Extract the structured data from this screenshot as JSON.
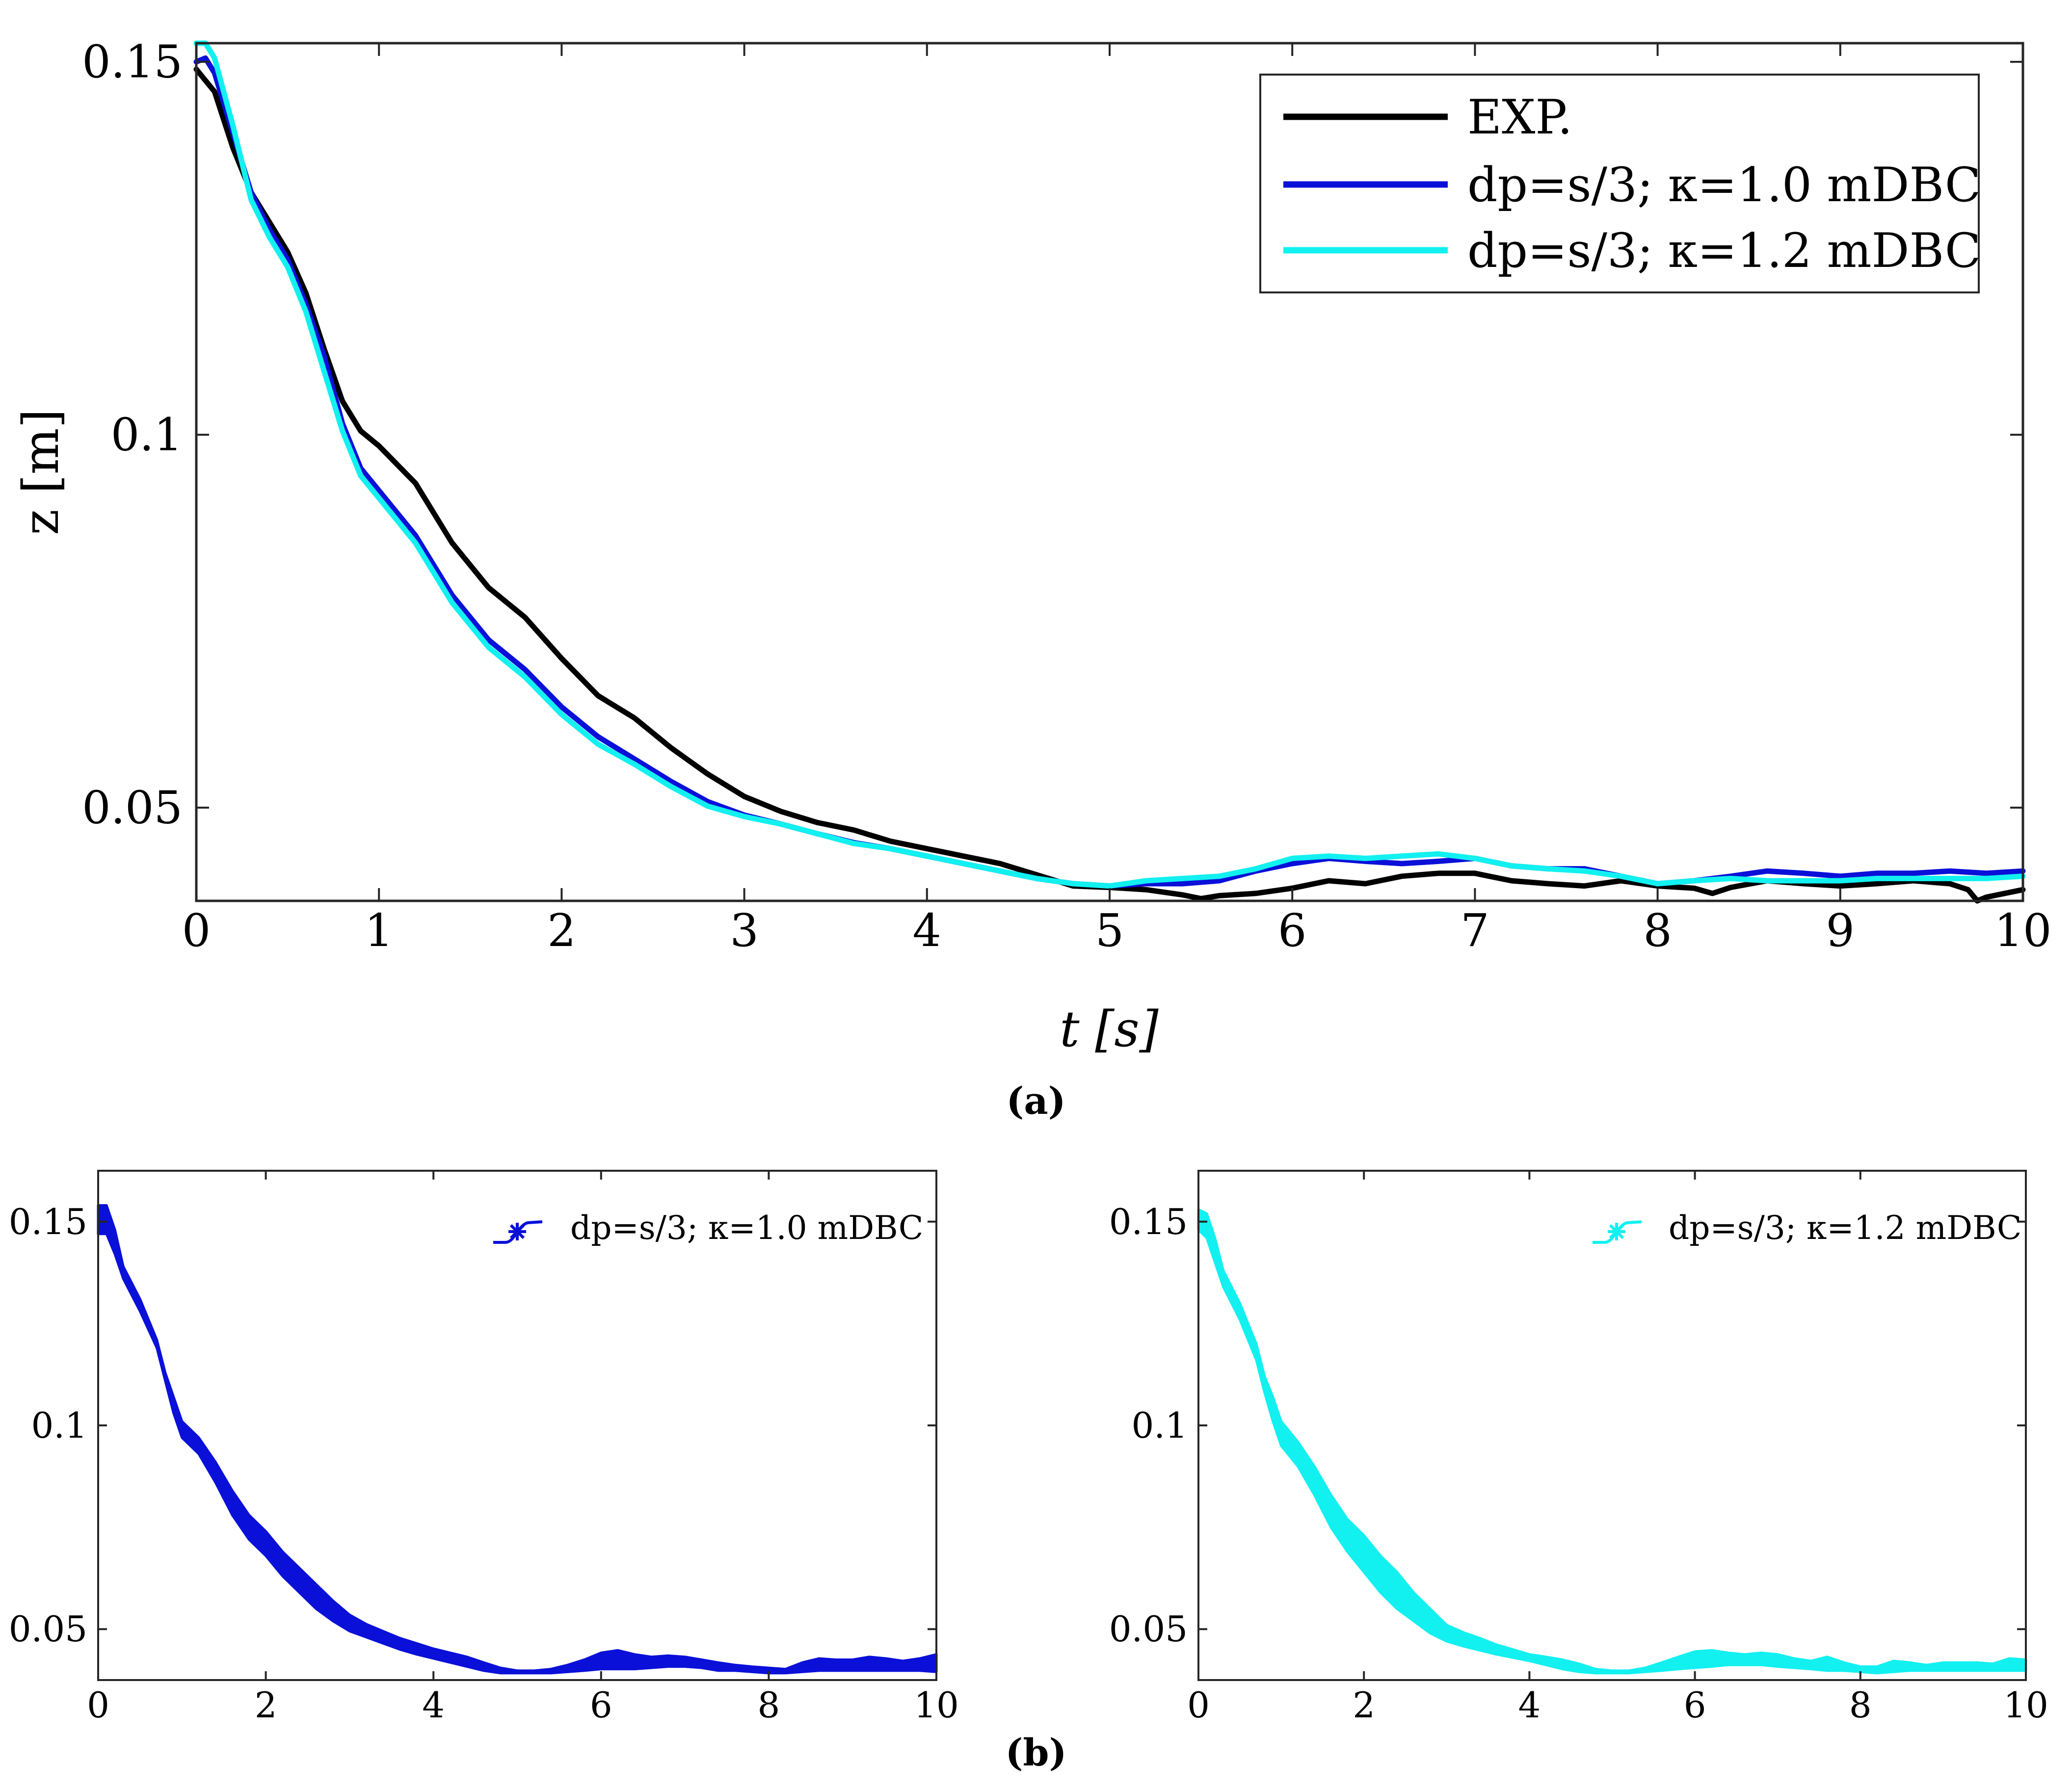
{
  "chart_data": [
    {
      "type": "line",
      "panel": "a",
      "caption": "(a)",
      "xlabel": "t [s]",
      "ylabel": "z [m]",
      "xlim": [
        0,
        10
      ],
      "ylim": [
        0.0375,
        0.1525
      ],
      "xticks": [
        0,
        1,
        2,
        3,
        4,
        5,
        6,
        7,
        8,
        9,
        10
      ],
      "xtick_labels": [
        "0",
        "1",
        "2",
        "3",
        "4",
        "5",
        "6",
        "7",
        "8",
        "9",
        "10"
      ],
      "yticks": [
        0.05,
        0.1,
        0.15
      ],
      "ytick_labels": [
        "0.05",
        "0.1",
        "0.15"
      ],
      "legend_position": "top-right",
      "series": [
        {
          "name": "EXP.",
          "color": "#000000",
          "x": [
            0,
            0.1,
            0.2,
            0.3,
            0.4,
            0.5,
            0.6,
            0.7,
            0.8,
            0.9,
            1.0,
            1.2,
            1.4,
            1.6,
            1.8,
            2.0,
            2.2,
            2.4,
            2.6,
            2.8,
            3.0,
            3.2,
            3.4,
            3.6,
            3.8,
            4.0,
            4.2,
            4.4,
            4.6,
            4.8,
            5.0,
            5.2,
            5.4,
            5.5,
            5.6,
            5.8,
            6.0,
            6.2,
            6.4,
            6.6,
            6.8,
            7.0,
            7.2,
            7.4,
            7.6,
            7.8,
            8.0,
            8.2,
            8.3,
            8.4,
            8.6,
            8.8,
            9.0,
            9.2,
            9.4,
            9.6,
            9.7,
            9.75,
            9.8,
            9.9,
            10.0
          ],
          "y": [
            0.149,
            0.146,
            0.1385,
            0.1325,
            0.1285,
            0.1245,
            0.119,
            0.1115,
            0.1045,
            0.1005,
            0.0985,
            0.0935,
            0.0855,
            0.0795,
            0.0755,
            0.07,
            0.065,
            0.062,
            0.058,
            0.0545,
            0.0515,
            0.0495,
            0.048,
            0.047,
            0.0455,
            0.0445,
            0.0435,
            0.0425,
            0.041,
            0.0395,
            0.0393,
            0.039,
            0.0383,
            0.0378,
            0.0382,
            0.0385,
            0.0392,
            0.0402,
            0.0398,
            0.0408,
            0.0412,
            0.0412,
            0.0402,
            0.0398,
            0.0395,
            0.0402,
            0.0395,
            0.0392,
            0.0385,
            0.0393,
            0.0402,
            0.0398,
            0.0395,
            0.0398,
            0.0402,
            0.0398,
            0.039,
            0.0375,
            0.038,
            0.0385,
            0.039
          ]
        },
        {
          "name": "dp=s/3; κ=1.0 mDBC",
          "color": "#0a10d8",
          "x": [
            0,
            0.05,
            0.1,
            0.2,
            0.3,
            0.4,
            0.5,
            0.6,
            0.7,
            0.8,
            0.9,
            1.0,
            1.2,
            1.4,
            1.6,
            1.8,
            2.0,
            2.2,
            2.4,
            2.6,
            2.8,
            3.0,
            3.2,
            3.4,
            3.6,
            3.8,
            4.0,
            4.2,
            4.4,
            4.6,
            4.8,
            5.0,
            5.2,
            5.4,
            5.6,
            5.8,
            6.0,
            6.2,
            6.4,
            6.6,
            6.8,
            7.0,
            7.2,
            7.4,
            7.6,
            7.8,
            8.0,
            8.2,
            8.4,
            8.6,
            8.8,
            9.0,
            9.2,
            9.4,
            9.6,
            9.8,
            10.0
          ],
          "y": [
            0.15,
            0.1505,
            0.1485,
            0.1405,
            0.1325,
            0.1275,
            0.1235,
            0.1175,
            0.1105,
            0.1015,
            0.0955,
            0.0925,
            0.0865,
            0.0785,
            0.0725,
            0.0685,
            0.0635,
            0.0595,
            0.0565,
            0.0535,
            0.0508,
            0.049,
            0.0478,
            0.0465,
            0.0453,
            0.0445,
            0.0435,
            0.0425,
            0.0415,
            0.0405,
            0.0398,
            0.0395,
            0.0398,
            0.0398,
            0.0402,
            0.0415,
            0.0425,
            0.0432,
            0.0428,
            0.0425,
            0.0428,
            0.0432,
            0.0422,
            0.0418,
            0.0418,
            0.0408,
            0.0398,
            0.0402,
            0.0408,
            0.0415,
            0.0412,
            0.0408,
            0.0412,
            0.0412,
            0.0415,
            0.0412,
            0.0415
          ]
        },
        {
          "name": "dp=s/3; κ=1.2 mDBC",
          "color": "#12f0f0",
          "x": [
            0,
            0.05,
            0.1,
            0.2,
            0.3,
            0.4,
            0.5,
            0.6,
            0.7,
            0.8,
            0.9,
            1.0,
            1.2,
            1.4,
            1.6,
            1.8,
            2.0,
            2.2,
            2.4,
            2.6,
            2.8,
            3.0,
            3.2,
            3.4,
            3.6,
            3.8,
            4.0,
            4.2,
            4.4,
            4.6,
            4.8,
            5.0,
            5.2,
            5.4,
            5.6,
            5.8,
            6.0,
            6.2,
            6.4,
            6.6,
            6.8,
            7.0,
            7.2,
            7.4,
            7.6,
            7.8,
            8.0,
            8.2,
            8.4,
            8.6,
            8.8,
            9.0,
            9.2,
            9.4,
            9.6,
            9.8,
            10.0
          ],
          "y": [
            0.1525,
            0.1525,
            0.1505,
            0.1415,
            0.1315,
            0.1265,
            0.1225,
            0.1165,
            0.1085,
            0.1005,
            0.0945,
            0.0915,
            0.0855,
            0.0775,
            0.0715,
            0.0675,
            0.0625,
            0.0585,
            0.0558,
            0.0528,
            0.0502,
            0.0488,
            0.0478,
            0.0465,
            0.0452,
            0.0445,
            0.0435,
            0.0425,
            0.0415,
            0.0405,
            0.0398,
            0.0395,
            0.0402,
            0.0405,
            0.0408,
            0.0418,
            0.0432,
            0.0435,
            0.0432,
            0.0435,
            0.0438,
            0.0432,
            0.0422,
            0.0418,
            0.0415,
            0.0408,
            0.0398,
            0.0402,
            0.0405,
            0.0402,
            0.0402,
            0.0402,
            0.0405,
            0.0405,
            0.0405,
            0.0405,
            0.0408
          ]
        }
      ]
    },
    {
      "type": "line",
      "panel": "b-left",
      "caption": "(b)",
      "xlim": [
        0,
        10
      ],
      "ylim": [
        0.0375,
        0.1625
      ],
      "xticks": [
        0,
        2,
        4,
        6,
        8,
        10
      ],
      "xtick_labels": [
        "0",
        "2",
        "4",
        "6",
        "8",
        "10"
      ],
      "yticks": [
        0.05,
        0.1,
        0.15
      ],
      "ytick_labels": [
        "0.05",
        "0.1",
        "0.15"
      ],
      "legend_position": "top-right",
      "series": [
        {
          "name": "dp=s/3; κ=1.0 mDBC",
          "color": "#0a10d8",
          "style": "band",
          "x": [
            0,
            0.1,
            0.2,
            0.3,
            0.5,
            0.7,
            0.8,
            0.9,
            1.0,
            1.2,
            1.4,
            1.6,
            1.8,
            2.0,
            2.2,
            2.4,
            2.6,
            2.8,
            3.0,
            3.2,
            3.4,
            3.6,
            3.8,
            4.0,
            4.2,
            4.4,
            4.6,
            4.8,
            5.0,
            5.2,
            5.4,
            5.6,
            5.8,
            6.0,
            6.2,
            6.4,
            6.6,
            6.8,
            7.0,
            7.2,
            7.4,
            7.6,
            7.8,
            8.0,
            8.2,
            8.4,
            8.6,
            8.8,
            9.0,
            9.2,
            9.4,
            9.6,
            9.8,
            10.0
          ],
          "lower": [
            0.147,
            0.147,
            0.142,
            0.136,
            0.128,
            0.119,
            0.111,
            0.103,
            0.097,
            0.093,
            0.086,
            0.078,
            0.072,
            0.068,
            0.063,
            0.059,
            0.055,
            0.052,
            0.0495,
            0.048,
            0.0465,
            0.045,
            0.0438,
            0.0428,
            0.0418,
            0.0408,
            0.0398,
            0.0392,
            0.0392,
            0.0392,
            0.0392,
            0.0395,
            0.0398,
            0.0402,
            0.0402,
            0.0402,
            0.0405,
            0.0408,
            0.0408,
            0.0405,
            0.0398,
            0.0398,
            0.0395,
            0.0392,
            0.0392,
            0.0395,
            0.0398,
            0.0398,
            0.0398,
            0.0398,
            0.0398,
            0.0398,
            0.0398,
            0.0395
          ],
          "upper": [
            0.154,
            0.154,
            0.148,
            0.139,
            0.131,
            0.121,
            0.113,
            0.107,
            0.101,
            0.097,
            0.091,
            0.084,
            0.078,
            0.074,
            0.069,
            0.065,
            0.061,
            0.057,
            0.0535,
            0.0512,
            0.0495,
            0.0478,
            0.0465,
            0.0452,
            0.0442,
            0.0432,
            0.0418,
            0.0405,
            0.0398,
            0.0398,
            0.0402,
            0.0412,
            0.0425,
            0.0442,
            0.0448,
            0.0438,
            0.0432,
            0.0435,
            0.0432,
            0.0425,
            0.0418,
            0.0412,
            0.0408,
            0.0405,
            0.0402,
            0.0418,
            0.0428,
            0.0425,
            0.0425,
            0.0432,
            0.0428,
            0.0422,
            0.0428,
            0.0438
          ]
        }
      ]
    },
    {
      "type": "line",
      "panel": "b-right",
      "xlim": [
        0,
        10
      ],
      "ylim": [
        0.0375,
        0.1625
      ],
      "xticks": [
        0,
        2,
        4,
        6,
        8,
        10
      ],
      "xtick_labels": [
        "0",
        "2",
        "4",
        "6",
        "8",
        "10"
      ],
      "yticks": [
        0.05,
        0.1,
        0.15
      ],
      "ytick_labels": [
        "0.05",
        "0.1",
        "0.15"
      ],
      "legend_position": "top-right",
      "series": [
        {
          "name": "dp=s/3; κ=1.2 mDBC",
          "color": "#12f0f0",
          "style": "band",
          "x": [
            0,
            0.1,
            0.2,
            0.3,
            0.5,
            0.7,
            0.8,
            0.9,
            1.0,
            1.2,
            1.4,
            1.6,
            1.8,
            2.0,
            2.2,
            2.4,
            2.6,
            2.8,
            3.0,
            3.2,
            3.4,
            3.6,
            3.8,
            4.0,
            4.2,
            4.4,
            4.6,
            4.8,
            5.0,
            5.2,
            5.4,
            5.6,
            5.8,
            6.0,
            6.2,
            6.4,
            6.6,
            6.8,
            7.0,
            7.2,
            7.4,
            7.6,
            7.8,
            8.0,
            8.2,
            8.4,
            8.6,
            8.8,
            9.0,
            9.2,
            9.4,
            9.6,
            9.8,
            10.0
          ],
          "lower": [
            0.148,
            0.146,
            0.14,
            0.134,
            0.126,
            0.116,
            0.108,
            0.101,
            0.095,
            0.09,
            0.083,
            0.075,
            0.069,
            0.064,
            0.059,
            0.055,
            0.052,
            0.049,
            0.047,
            0.0458,
            0.0448,
            0.0438,
            0.043,
            0.0422,
            0.0412,
            0.0402,
            0.0395,
            0.0392,
            0.0392,
            0.0392,
            0.0395,
            0.0398,
            0.0402,
            0.0405,
            0.0408,
            0.0412,
            0.0412,
            0.0412,
            0.0408,
            0.0405,
            0.0402,
            0.0398,
            0.0398,
            0.0395,
            0.0392,
            0.0395,
            0.0398,
            0.0398,
            0.0398,
            0.0398,
            0.0398,
            0.0398,
            0.0398,
            0.0398
          ],
          "upper": [
            0.153,
            0.152,
            0.146,
            0.138,
            0.13,
            0.12,
            0.112,
            0.107,
            0.101,
            0.096,
            0.09,
            0.083,
            0.077,
            0.073,
            0.068,
            0.064,
            0.059,
            0.055,
            0.051,
            0.0492,
            0.0478,
            0.0462,
            0.045,
            0.0438,
            0.0432,
            0.0425,
            0.0415,
            0.0402,
            0.0398,
            0.0398,
            0.0405,
            0.0418,
            0.0432,
            0.0445,
            0.0448,
            0.0442,
            0.0438,
            0.0442,
            0.0438,
            0.0428,
            0.0422,
            0.0432,
            0.0418,
            0.0408,
            0.0408,
            0.0422,
            0.0418,
            0.0412,
            0.0418,
            0.0418,
            0.0418,
            0.0415,
            0.0428,
            0.0425
          ]
        }
      ]
    }
  ]
}
